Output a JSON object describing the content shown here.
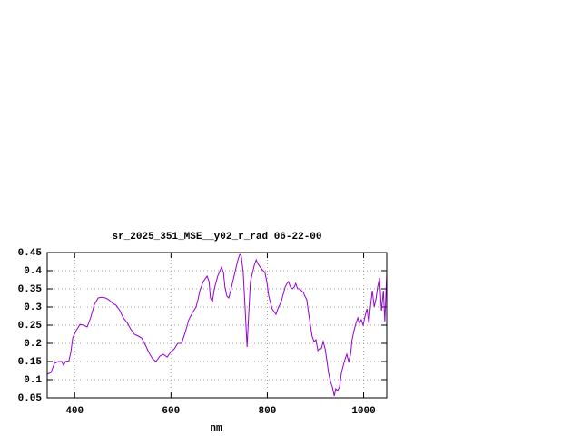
{
  "chart_data": {
    "type": "line",
    "title": "sr_2025_351_MSE__y02_r_rad 06-22-00",
    "x_label": "nm",
    "x": [
      343,
      351,
      358,
      366,
      373,
      377,
      381,
      388,
      392,
      396,
      403,
      411,
      418,
      426,
      433,
      441,
      449,
      456,
      464,
      471,
      479,
      486,
      494,
      501,
      509,
      516,
      524,
      532,
      539,
      547,
      554,
      562,
      569,
      577,
      584,
      592,
      599,
      607,
      614,
      622,
      630,
      637,
      645,
      652,
      656,
      660,
      667,
      675,
      679,
      682,
      686,
      690,
      697,
      705,
      709,
      712,
      716,
      720,
      724,
      731,
      739,
      743,
      746,
      750,
      754,
      758,
      761,
      765,
      773,
      777,
      780,
      788,
      795,
      799,
      803,
      810,
      818,
      822,
      829,
      837,
      841,
      844,
      848,
      852,
      856,
      859,
      863,
      867,
      875,
      878,
      882,
      886,
      893,
      897,
      901,
      905,
      908,
      912,
      916,
      920,
      924,
      927,
      931,
      935,
      939,
      942,
      946,
      950,
      954,
      957,
      961,
      965,
      969,
      973,
      976,
      980,
      984,
      988,
      991,
      995,
      999,
      1003,
      1007,
      1011,
      1014,
      1018,
      1022,
      1026,
      1029,
      1033,
      1037,
      1041,
      1044,
      1048
    ],
    "series": [
      {
        "color": "#9400d3",
        "values": [
          0.115,
          0.12,
          0.145,
          0.15,
          0.15,
          0.14,
          0.15,
          0.152,
          0.175,
          0.215,
          0.235,
          0.252,
          0.25,
          0.245,
          0.27,
          0.307,
          0.325,
          0.327,
          0.325,
          0.32,
          0.31,
          0.305,
          0.29,
          0.27,
          0.257,
          0.24,
          0.225,
          0.22,
          0.215,
          0.195,
          0.175,
          0.157,
          0.15,
          0.165,
          0.17,
          0.162,
          0.175,
          0.185,
          0.2,
          0.2,
          0.232,
          0.265,
          0.285,
          0.3,
          0.32,
          0.345,
          0.37,
          0.385,
          0.37,
          0.325,
          0.315,
          0.35,
          0.385,
          0.41,
          0.395,
          0.355,
          0.33,
          0.325,
          0.345,
          0.385,
          0.43,
          0.445,
          0.44,
          0.395,
          0.295,
          0.19,
          0.27,
          0.37,
          0.415,
          0.43,
          0.42,
          0.405,
          0.395,
          0.37,
          0.33,
          0.295,
          0.28,
          0.295,
          0.315,
          0.355,
          0.365,
          0.37,
          0.355,
          0.35,
          0.355,
          0.365,
          0.35,
          0.35,
          0.34,
          0.33,
          0.32,
          0.28,
          0.22,
          0.205,
          0.21,
          0.18,
          0.185,
          0.185,
          0.205,
          0.185,
          0.15,
          0.12,
          0.095,
          0.08,
          0.055,
          0.075,
          0.07,
          0.08,
          0.12,
          0.135,
          0.155,
          0.17,
          0.15,
          0.17,
          0.21,
          0.235,
          0.255,
          0.27,
          0.255,
          0.265,
          0.25,
          0.275,
          0.295,
          0.255,
          0.3,
          0.345,
          0.3,
          0.325,
          0.355,
          0.38,
          0.29,
          0.345,
          0.26,
          0.395
        ]
      }
    ],
    "xlim": [
      343,
      1048
    ],
    "ylim": [
      0.05,
      0.45
    ],
    "xticks": [
      400,
      600,
      800,
      1000
    ],
    "yticks": [
      0.05,
      0.1,
      0.15,
      0.2,
      0.25,
      0.3,
      0.35,
      0.4,
      0.45
    ],
    "grid": true
  }
}
